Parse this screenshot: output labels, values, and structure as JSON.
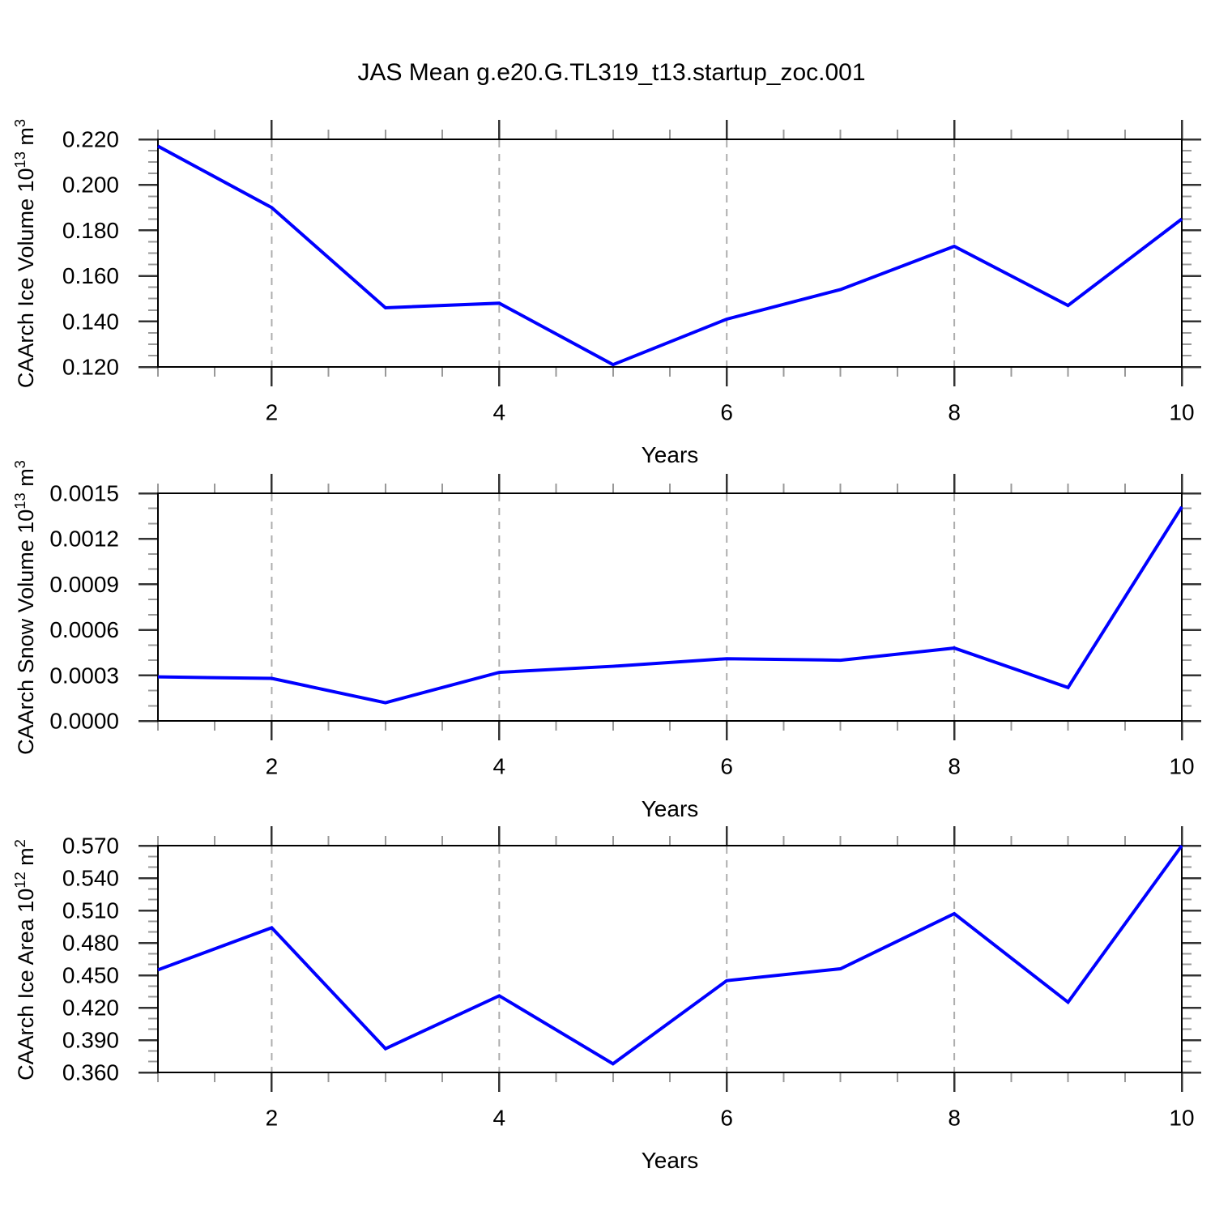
{
  "page": {
    "title": "JAS Mean g.e20.G.TL319_t13.startup_zoc.001",
    "background": "#ffffff"
  },
  "colors": {
    "line": "#0000ff",
    "axis": "#000000",
    "major_tick": "#333333",
    "minor_tick": "#999999",
    "dashed_gridline": "#adadad",
    "text": "#000000"
  },
  "x_axis": {
    "min": 1,
    "max": 10,
    "major_ticks": [
      2,
      4,
      6,
      8,
      10
    ],
    "minor_step": 0.5,
    "dashed_gridlines_at": [
      2,
      4,
      6,
      8
    ]
  },
  "chart_data": [
    {
      "type": "line",
      "name": "ice-volume",
      "xlabel": "Years",
      "ylabel": {
        "text": "CAArch Ice Volume 10",
        "exp1": "13",
        "unit": " m",
        "exp2": "3"
      },
      "x": [
        1,
        2,
        3,
        4,
        5,
        6,
        7,
        8,
        9,
        10
      ],
      "values": [
        0.217,
        0.19,
        0.146,
        0.148,
        0.121,
        0.141,
        0.154,
        0.173,
        0.147,
        0.185
      ],
      "ylim": [
        0.12,
        0.22
      ],
      "y_major_tick_labels": [
        "0.220",
        "0.200",
        "0.180",
        "0.160",
        "0.140",
        "0.120"
      ],
      "y_minor_step": 0.005,
      "legend": "none",
      "grid": "vertical-dashed-only"
    },
    {
      "type": "line",
      "name": "snow-volume",
      "xlabel": "Years",
      "ylabel": {
        "text": "CAArch Snow Volume 10",
        "exp1": "13",
        "unit": " m",
        "exp2": "3"
      },
      "x": [
        1,
        2,
        3,
        4,
        5,
        6,
        7,
        8,
        9,
        10
      ],
      "values": [
        0.00029,
        0.00028,
        0.00012,
        0.00032,
        0.00036,
        0.00041,
        0.0004,
        0.00048,
        0.00022,
        0.00141
      ],
      "ylim": [
        0.0,
        0.0015
      ],
      "y_major_tick_labels": [
        "0.0015",
        "0.0012",
        "0.0009",
        "0.0006",
        "0.0003",
        "0.0000"
      ],
      "y_minor_step": 0.0001,
      "legend": "none",
      "grid": "vertical-dashed-only"
    },
    {
      "type": "line",
      "name": "ice-area",
      "xlabel": "Years",
      "ylabel": {
        "text": "CAArch Ice Area 10",
        "exp1": "12",
        "unit": " m",
        "exp2": "2"
      },
      "x": [
        1,
        2,
        3,
        4,
        5,
        6,
        7,
        8,
        9,
        10
      ],
      "values": [
        0.455,
        0.494,
        0.382,
        0.431,
        0.368,
        0.445,
        0.456,
        0.507,
        0.425,
        0.57
      ],
      "ylim": [
        0.36,
        0.57
      ],
      "y_major_tick_labels": [
        "0.570",
        "0.540",
        "0.510",
        "0.480",
        "0.450",
        "0.420",
        "0.390",
        "0.360"
      ],
      "y_minor_step": 0.01,
      "legend": "none",
      "grid": "vertical-dashed-only"
    }
  ]
}
